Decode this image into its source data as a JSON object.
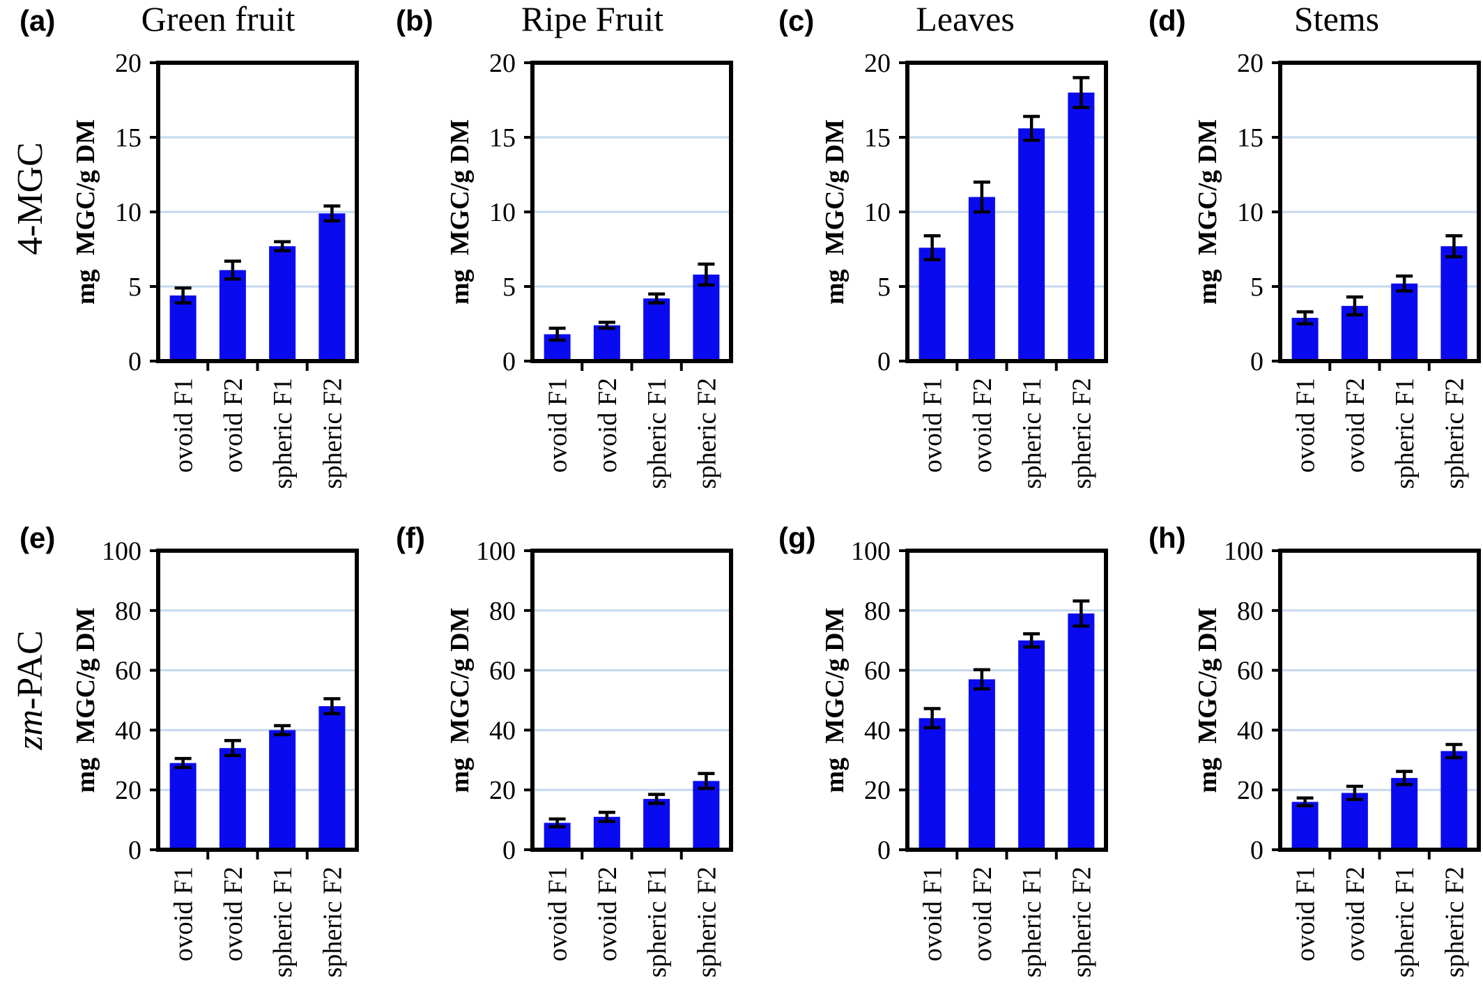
{
  "figure": {
    "column_titles": [
      "Green fruit",
      "Ripe Fruit",
      "Leaves",
      "Stems"
    ],
    "row_titles": [
      "4-MGC",
      "PAC"
    ],
    "row_title_prefixes": [
      "",
      "zm-"
    ]
  },
  "chart_data": [
    {
      "panel": "(a)",
      "type": "bar",
      "title": "Green fruit",
      "ylabel_unit": "mg",
      "ylabel": "MGC/g DM",
      "categories": [
        "ovoid F1",
        "ovoid F2",
        "spheric F1",
        "spheric F2"
      ],
      "values": [
        4.4,
        6.1,
        7.7,
        9.9
      ],
      "errors": [
        0.5,
        0.6,
        0.3,
        0.5
      ],
      "ylim": [
        0,
        20
      ],
      "yticks": [
        0,
        5,
        10,
        15,
        20
      ],
      "grid": true,
      "bar_color": "#0a0af0"
    },
    {
      "panel": "(b)",
      "type": "bar",
      "title": "Ripe Fruit",
      "ylabel_unit": "mg",
      "ylabel": "MGC/g DM",
      "categories": [
        "ovoid F1",
        "ovoid F2",
        "spheric F1",
        "spheric F2"
      ],
      "values": [
        1.8,
        2.4,
        4.2,
        5.8
      ],
      "errors": [
        0.4,
        0.2,
        0.3,
        0.7
      ],
      "ylim": [
        0,
        20
      ],
      "yticks": [
        0,
        5,
        10,
        15,
        20
      ],
      "grid": true,
      "bar_color": "#0a0af0"
    },
    {
      "panel": "(c)",
      "type": "bar",
      "title": "Leaves",
      "ylabel_unit": "mg",
      "ylabel": "MGC/g DM",
      "categories": [
        "ovoid F1",
        "ovoid F2",
        "spheric F1",
        "spheric F2"
      ],
      "values": [
        7.6,
        11.0,
        15.6,
        18.0
      ],
      "errors": [
        0.8,
        1.0,
        0.8,
        1.0
      ],
      "ylim": [
        0,
        20
      ],
      "yticks": [
        0,
        5,
        10,
        15,
        20
      ],
      "grid": true,
      "bar_color": "#0a0af0"
    },
    {
      "panel": "(d)",
      "type": "bar",
      "title": "Stems",
      "ylabel_unit": "mg",
      "ylabel": "MGC/g DM",
      "categories": [
        "ovoid F1",
        "ovoid F2",
        "spheric F1",
        "spheric F2"
      ],
      "values": [
        2.9,
        3.7,
        5.2,
        7.7
      ],
      "errors": [
        0.4,
        0.6,
        0.5,
        0.7
      ],
      "ylim": [
        0,
        20
      ],
      "yticks": [
        0,
        5,
        10,
        15,
        20
      ],
      "grid": true,
      "bar_color": "#0a0af0"
    },
    {
      "panel": "(e)",
      "type": "bar",
      "title": "",
      "ylabel_unit": "mg",
      "ylabel": "MGC/g DM",
      "categories": [
        "ovoid F1",
        "ovoid F2",
        "spheric F1",
        "spheric F2"
      ],
      "values": [
        29,
        34,
        40,
        48
      ],
      "errors": [
        1.5,
        2.5,
        1.5,
        2.5
      ],
      "ylim": [
        0,
        100
      ],
      "yticks": [
        0,
        20,
        40,
        60,
        80,
        100
      ],
      "grid": true,
      "bar_color": "#0a0af0"
    },
    {
      "panel": "(f)",
      "type": "bar",
      "title": "",
      "ylabel_unit": "mg",
      "ylabel": "MGC/g DM",
      "categories": [
        "ovoid F1",
        "ovoid F2",
        "spheric F1",
        "spheric F2"
      ],
      "values": [
        9,
        11,
        17,
        23
      ],
      "errors": [
        1.3,
        1.5,
        1.5,
        2.5
      ],
      "ylim": [
        0,
        100
      ],
      "yticks": [
        0,
        20,
        40,
        60,
        80,
        100
      ],
      "grid": true,
      "bar_color": "#0a0af0"
    },
    {
      "panel": "(g)",
      "type": "bar",
      "title": "",
      "ylabel_unit": "mg",
      "ylabel": "MGC/g DM",
      "categories": [
        "ovoid F1",
        "ovoid F2",
        "spheric F1",
        "spheric F2"
      ],
      "values": [
        44,
        57,
        70,
        79
      ],
      "errors": [
        3.2,
        3.2,
        2.2,
        4.2
      ],
      "ylim": [
        0,
        100
      ],
      "yticks": [
        0,
        20,
        40,
        60,
        80,
        100
      ],
      "grid": true,
      "bar_color": "#0a0af0"
    },
    {
      "panel": "(h)",
      "type": "bar",
      "title": "",
      "ylabel_unit": "mg",
      "ylabel": "MGC/g DM",
      "categories": [
        "ovoid F1",
        "ovoid F2",
        "spheric F1",
        "spheric F2"
      ],
      "values": [
        16,
        19,
        24,
        33
      ],
      "errors": [
        1.3,
        2.2,
        2.2,
        2.2
      ],
      "ylim": [
        0,
        100
      ],
      "yticks": [
        0,
        20,
        40,
        60,
        80,
        100
      ],
      "grid": true,
      "bar_color": "#0a0af0"
    }
  ]
}
